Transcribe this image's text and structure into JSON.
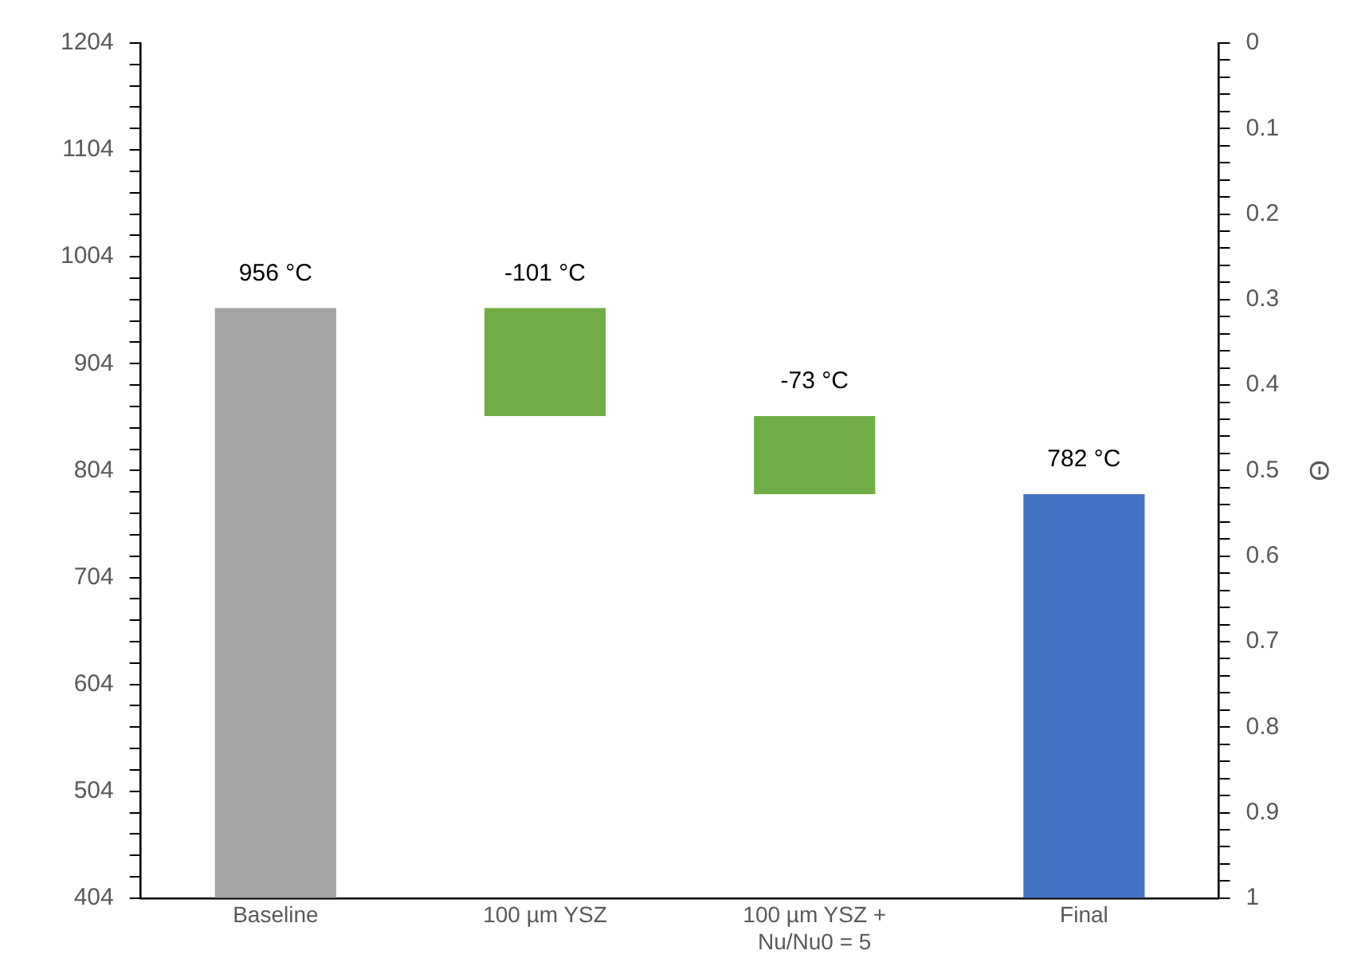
{
  "chart_data": {
    "type": "bar",
    "y2label": "Θ",
    "categories": [
      "Baseline",
      "100 µm YSZ",
      "100 µm YSZ +\nNu/Nu0 = 5",
      "Final"
    ],
    "values": [
      956,
      -101,
      -73,
      782
    ],
    "base": [
      null,
      956,
      855,
      null
    ],
    "colors": [
      "#a5a5a5",
      "#70ad47",
      "#70ad47",
      "#4472c4"
    ],
    "value_labels": [
      "956 °C",
      "-101 °C",
      "-73 °C",
      "782 °C"
    ],
    "ylim": [
      404,
      1204
    ],
    "yticks": [
      404,
      {
        "value": 424,
        "label": null
      },
      {
        "value": 444,
        "label": null
      },
      {
        "value": 464,
        "label": null
      },
      {
        "value": 484,
        "label": null
      },
      504,
      {
        "value": 524,
        "label": null
      },
      {
        "value": 544,
        "label": null
      },
      {
        "value": 564,
        "label": null
      },
      {
        "value": 584,
        "label": null
      },
      604,
      {
        "value": 624,
        "label": null
      },
      {
        "value": 644,
        "label": null
      },
      {
        "value": 664,
        "label": null
      },
      {
        "value": 684,
        "label": null
      },
      704,
      {
        "value": 724,
        "label": null
      },
      {
        "value": 744,
        "label": null
      },
      {
        "value": 764,
        "label": null
      },
      {
        "value": 784,
        "label": null
      },
      804,
      {
        "value": 824,
        "label": null
      },
      {
        "value": 844,
        "label": null
      },
      {
        "value": 864,
        "label": null
      },
      {
        "value": 884,
        "label": null
      },
      904,
      {
        "value": 924,
        "label": null
      },
      {
        "value": 944,
        "label": null
      },
      {
        "value": 964,
        "label": null
      },
      {
        "value": 984,
        "label": null
      },
      1004,
      {
        "value": 1024,
        "label": null
      },
      {
        "value": 1044,
        "label": null
      },
      {
        "value": 1064,
        "label": null
      },
      {
        "value": 1084,
        "label": null
      },
      1104,
      {
        "value": 1124,
        "label": null
      },
      {
        "value": 1144,
        "label": null
      },
      {
        "value": 1164,
        "label": null
      },
      {
        "value": 1184,
        "label": null
      },
      1204
    ],
    "y2lim": [
      1,
      0
    ],
    "y2ticks": [
      0,
      {
        "value": 0.02,
        "label": null
      },
      {
        "value": 0.04,
        "label": null
      },
      {
        "value": 0.06,
        "label": null
      },
      {
        "value": 0.08,
        "label": null
      },
      0.1,
      {
        "value": 0.12,
        "label": null
      },
      {
        "value": 0.14,
        "label": null
      },
      {
        "value": 0.16,
        "label": null
      },
      {
        "value": 0.18,
        "label": null
      },
      0.2,
      {
        "value": 0.22,
        "label": null
      },
      {
        "value": 0.24,
        "label": null
      },
      {
        "value": 0.26,
        "label": null
      },
      {
        "value": 0.28,
        "label": null
      },
      0.3,
      {
        "value": 0.32,
        "label": null
      },
      {
        "value": 0.34,
        "label": null
      },
      {
        "value": 0.36,
        "label": null
      },
      {
        "value": 0.38,
        "label": null
      },
      0.4,
      {
        "value": 0.42,
        "label": null
      },
      {
        "value": 0.44,
        "label": null
      },
      {
        "value": 0.46,
        "label": null
      },
      {
        "value": 0.48,
        "label": null
      },
      0.5,
      {
        "value": 0.52,
        "label": null
      },
      {
        "value": 0.54,
        "label": null
      },
      {
        "value": 0.56,
        "label": null
      },
      {
        "value": 0.58,
        "label": null
      },
      0.6,
      {
        "value": 0.62,
        "label": null
      },
      {
        "value": 0.64,
        "label": null
      },
      {
        "value": 0.66,
        "label": null
      },
      {
        "value": 0.68,
        "label": null
      },
      0.7,
      {
        "value": 0.72,
        "label": null
      },
      {
        "value": 0.74,
        "label": null
      },
      {
        "value": 0.76,
        "label": null
      },
      {
        "value": 0.78,
        "label": null
      },
      0.8,
      {
        "value": 0.82,
        "label": null
      },
      {
        "value": 0.84,
        "label": null
      },
      {
        "value": 0.86,
        "label": null
      },
      {
        "value": 0.88,
        "label": null
      },
      0.9,
      {
        "value": 0.92,
        "label": null
      },
      {
        "value": 0.94,
        "label": null
      },
      {
        "value": 0.96,
        "label": null
      },
      {
        "value": 0.98,
        "label": null
      },
      1
    ],
    "grid": false,
    "legend": false
  }
}
